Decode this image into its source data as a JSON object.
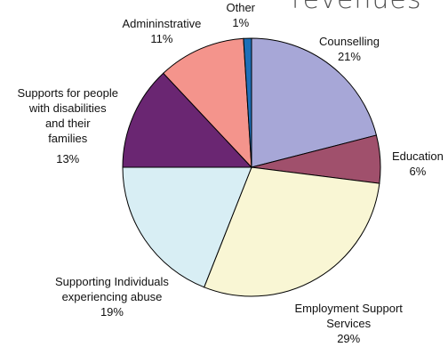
{
  "chart_data": {
    "type": "pie",
    "title": "revenues",
    "slices": [
      {
        "label": [
          "Counselling"
        ],
        "value": 21,
        "pct": "21%",
        "color": "#a7a7d7"
      },
      {
        "label": [
          "Education"
        ],
        "value": 6,
        "pct": "6%",
        "color": "#a0506c"
      },
      {
        "label": [
          "Employment Support",
          "Services"
        ],
        "value": 29,
        "pct": "29%",
        "color": "#f9f6d4"
      },
      {
        "label": [
          "Supporting Individuals",
          "experiencing abuse"
        ],
        "value": 19,
        "pct": "19%",
        "color": "#d8eef4"
      },
      {
        "label": [
          "Supports for people",
          "with disabilities",
          "and their",
          "families"
        ],
        "value": 13,
        "pct": "13%",
        "color": "#6a2672"
      },
      {
        "label": [
          "Admininstrative"
        ],
        "value": 11,
        "pct": "11%",
        "color": "#f4948c"
      },
      {
        "label": [
          "Other"
        ],
        "value": 1,
        "pct": "1%",
        "color": "#1d6fb8"
      }
    ],
    "legend": "none"
  }
}
